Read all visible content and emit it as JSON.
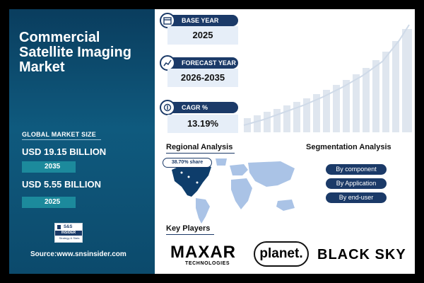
{
  "title": "Commercial Satellite Imaging Market",
  "global_market_size": {
    "label": "GLOBAL MARKET SIZE",
    "value_2035": "USD 19.15 BILLION",
    "year_2035": "2035",
    "value_2025": "USD 5.55 BILLION",
    "year_2025": "2025"
  },
  "logo": {
    "line1": "S&S",
    "line2": "INSIDER",
    "line3": "Strategy & Stats"
  },
  "source": "Source:www.snsinsider.com",
  "base_year": {
    "label": "BASE YEAR",
    "value": "2025"
  },
  "forecast_year": {
    "label": "FORECAST YEAR",
    "value": "2026-2035"
  },
  "cagr": {
    "label": "CAGR %",
    "value": "13.19%"
  },
  "regional": {
    "heading": "Regional Analysis",
    "share": "38.70% share"
  },
  "segmentation": {
    "heading": "Segmentation Analysis",
    "items": [
      "By component",
      "By Application",
      "By end-user"
    ]
  },
  "key_players": {
    "heading": "Key Players",
    "maxar": "MAXAR",
    "maxar_sub": "TECHNOLOGIES",
    "planet": "planet.",
    "blacksky": "BLACK SKY"
  },
  "colors": {
    "navy": "#1b3a68",
    "teal": "#1c8a9c",
    "highlight": "#0e3d6b",
    "map": "#aac3e6"
  }
}
